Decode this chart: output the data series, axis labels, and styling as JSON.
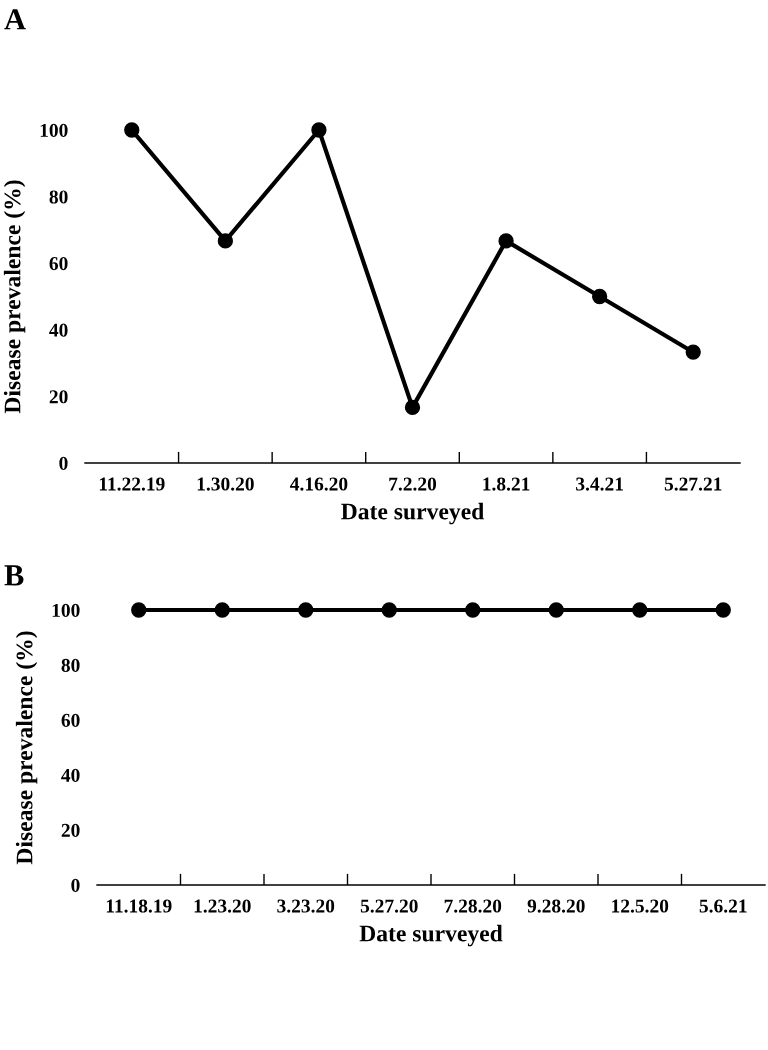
{
  "chart_data": [
    {
      "type": "line",
      "title": "A",
      "xlabel": "Date surveyed",
      "ylabel": "Disease prevalence (%)",
      "categories": [
        "11.22.19",
        "1.30.20",
        "4.16.20",
        "7.2.20",
        "1.8.21",
        "3.4.21",
        "5.27.21"
      ],
      "series": [
        {
          "color": "#000000",
          "values": [
            100,
            66.7,
            100,
            16.7,
            66.7,
            50,
            33.3
          ]
        }
      ],
      "ylim": [
        0,
        100
      ],
      "yticks": [
        0,
        20,
        40,
        60,
        80,
        100
      ],
      "grid": false,
      "legend": false,
      "marker": "circle",
      "line_style": "solid"
    },
    {
      "type": "line",
      "title": "B",
      "xlabel": "Date surveyed",
      "ylabel": "Disease prevalence (%)",
      "categories": [
        "11.18.19",
        "1.23.20",
        "3.23.20",
        "5.27.20",
        "7.28.20",
        "9.28.20",
        "12.5.20",
        "5.6.21"
      ],
      "series": [
        {
          "color": "#000000",
          "values": [
            100,
            100,
            100,
            100,
            100,
            100,
            100,
            100
          ]
        }
      ],
      "ylim": [
        0,
        100
      ],
      "yticks": [
        0,
        20,
        40,
        60,
        80,
        100
      ],
      "grid": false,
      "legend": false,
      "marker": "circle",
      "line_style": "solid"
    }
  ]
}
